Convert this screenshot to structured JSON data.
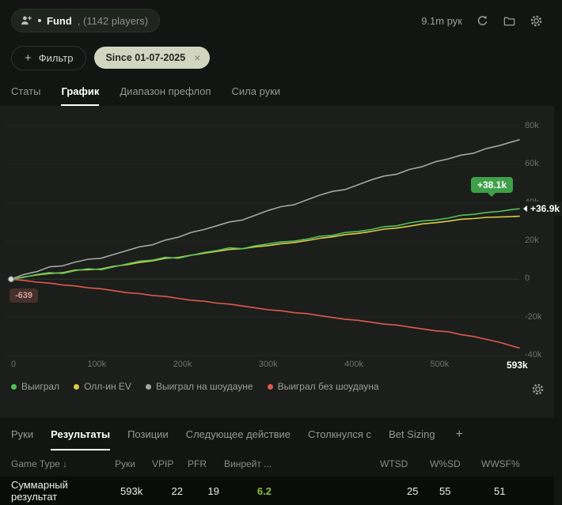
{
  "icons": {
    "plus": "+",
    "close": "×"
  },
  "topbar": {
    "player_chip": {
      "name": "Fund",
      "players": ", (1142 players)"
    },
    "hands_total": "9.1m рук"
  },
  "filterbar": {
    "filter_button": "Фильтр",
    "active_filter": "Since 01-07-2025"
  },
  "tabs": {
    "items": [
      "Статы",
      "График",
      "Диапазон префлоп",
      "Сила руки"
    ],
    "active_index": 1
  },
  "chart_data": {
    "type": "line",
    "x_axis_unit": "hands",
    "y_value_unit": "thousands",
    "ylim": [
      -40,
      80
    ],
    "x": [
      0,
      15,
      30,
      45,
      60,
      75,
      90,
      105,
      120,
      135,
      150,
      165,
      180,
      195,
      210,
      225,
      240,
      255,
      270,
      285,
      300,
      315,
      330,
      345,
      360,
      375,
      390,
      405,
      420,
      435,
      450,
      465,
      480,
      495,
      510,
      525,
      540,
      555,
      570,
      585,
      593
    ],
    "y_gridlines": [
      {
        "v": 80,
        "label": "80k"
      },
      {
        "v": 60,
        "label": "60k"
      },
      {
        "v": 40,
        "label": "40k"
      },
      {
        "v": 20,
        "label": "20k"
      },
      {
        "v": 0,
        "label": "0"
      },
      {
        "v": -20,
        "label": "-20k"
      },
      {
        "v": -40,
        "label": "-40k"
      }
    ],
    "x_ticks": [
      {
        "v": 0,
        "label": "0"
      },
      {
        "v": 100,
        "label": "100k"
      },
      {
        "v": 200,
        "label": "200k"
      },
      {
        "v": 300,
        "label": "300k"
      },
      {
        "v": 400,
        "label": "400k"
      },
      {
        "v": 500,
        "label": "500k"
      },
      {
        "v": 593,
        "label": "593k",
        "strong": true
      }
    ],
    "series": [
      {
        "name": "Выиграл",
        "color": "#53c05c",
        "values": [
          0,
          1,
          2.5,
          3.5,
          3,
          4.5,
          5.5,
          5,
          6.5,
          8,
          9.5,
          10,
          11.5,
          11,
          12.5,
          14,
          15,
          16.5,
          16,
          17.5,
          18.5,
          19.5,
          20,
          21,
          22.5,
          23,
          24.5,
          25,
          26,
          27.5,
          28,
          29.5,
          30.5,
          31,
          32,
          33.5,
          34,
          35,
          35.5,
          36.5,
          36.9
        ]
      },
      {
        "name": "Олл-ин EV",
        "color": "#d9cb49",
        "values": [
          0,
          1.2,
          2.2,
          3,
          3.4,
          4.8,
          5,
          5.4,
          6.8,
          7.6,
          8.8,
          9.6,
          11,
          11.4,
          12.6,
          13.6,
          14.6,
          15.6,
          16,
          17,
          17.6,
          18.6,
          19.2,
          20.2,
          21.4,
          22.2,
          23.4,
          24,
          25,
          26.2,
          26.8,
          27.8,
          29,
          29.6,
          30.4,
          31.4,
          31.8,
          32.4,
          32.6,
          32.8,
          33
        ]
      },
      {
        "name": "Выиграл на шоудауне",
        "color": "#a3a7a2",
        "values": [
          0,
          2.5,
          4,
          6.5,
          7,
          9,
          10.5,
          11,
          13,
          15,
          17,
          18,
          20.5,
          22,
          24.5,
          26,
          28,
          30,
          31,
          33.5,
          36,
          38,
          39,
          41.5,
          44,
          46,
          47,
          49.5,
          52,
          54,
          55,
          57.5,
          59,
          61.5,
          63,
          65,
          66,
          68.5,
          70,
          72,
          73
        ]
      },
      {
        "name": "Выиграл без шоудауна",
        "color": "#df5850",
        "values": [
          0,
          -0.6,
          -1.5,
          -2,
          -3,
          -3.5,
          -4.5,
          -5,
          -6,
          -7,
          -7.5,
          -8.5,
          -9,
          -10,
          -11,
          -11.5,
          -12.5,
          -13,
          -14,
          -15,
          -16,
          -16.5,
          -17.5,
          -18,
          -19,
          -20,
          -21,
          -21.5,
          -22.5,
          -23.5,
          -24,
          -25,
          -26,
          -27,
          -27.5,
          -29,
          -30,
          -31.5,
          -33,
          -35,
          -36
        ]
      }
    ],
    "annotations": {
      "end_badge": "+38.1k",
      "end_marker": "+36.9k",
      "start_badge": "-639"
    }
  },
  "bottom_tabs": {
    "items": [
      "Руки",
      "Результаты",
      "Позиции",
      "Следующее действие",
      "Столкнулся с",
      "Bet Sizing"
    ],
    "active_index": 1
  },
  "table": {
    "headers": [
      "Game Type ↓",
      "Руки",
      "VPIP",
      "PFR",
      "Винрейт ...",
      "WTSD",
      "W%SD",
      "WWSF%"
    ],
    "summary_row": {
      "label": "Суммарный результат",
      "hands": "593k",
      "vpip": "22",
      "pfr": "19",
      "winrate": "6.2",
      "wtsd": "25",
      "wsd": "55",
      "wwsf": "51"
    }
  }
}
